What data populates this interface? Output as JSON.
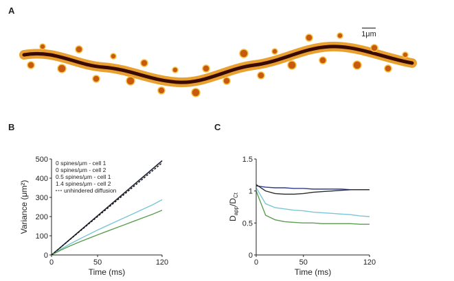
{
  "figure": {
    "panel_a": {
      "label": "A",
      "scale_bar": "1μm"
    }
  },
  "chart_data": [
    {
      "type": "line",
      "panel": "B",
      "xlabel": "Time (ms)",
      "ylabel": "Variance (μm²)",
      "x": [
        0,
        10,
        20,
        30,
        40,
        50,
        60,
        70,
        80,
        90,
        100,
        110,
        120
      ],
      "xlim": [
        0,
        120
      ],
      "xticks": [
        0,
        50,
        120
      ],
      "ylim": [
        0,
        500
      ],
      "yticks": [
        0,
        100,
        200,
        300,
        400,
        500
      ],
      "legend": "upper left",
      "series": [
        {
          "name": "0 spines/μm - cell 1",
          "color": "#2e3c8c",
          "style": "solid",
          "values": [
            0,
            41,
            82,
            123,
            164,
            205,
            246,
            287,
            328,
            369,
            410,
            451,
            492
          ]
        },
        {
          "name": "0 spines/μm - cell 2",
          "color": "#2a2a2a",
          "style": "solid",
          "values": [
            0,
            40,
            81,
            122,
            163,
            204,
            245,
            286,
            327,
            368,
            408,
            449,
            490
          ]
        },
        {
          "name": "0.5 spines/μm - cell 1",
          "color": "#79c6d6",
          "style": "solid",
          "values": [
            0,
            30,
            57,
            82,
            106,
            130,
            152,
            174,
            196,
            218,
            240,
            262,
            288
          ]
        },
        {
          "name": "1.4 spines/μm - cell 2",
          "color": "#5a9e4e",
          "style": "solid",
          "values": [
            0,
            25,
            47,
            67,
            86,
            105,
            123,
            141,
            159,
            177,
            195,
            213,
            233
          ]
        },
        {
          "name": "unhindered diffusion",
          "color": "#111111",
          "style": "dashed",
          "values": [
            0,
            40,
            80,
            120,
            160,
            200,
            240,
            280,
            320,
            360,
            400,
            440,
            480
          ]
        }
      ]
    },
    {
      "type": "line",
      "panel": "C",
      "xlabel": "Time (ms)",
      "ylabel_parts": [
        "D",
        "app",
        "/D",
        "Ct"
      ],
      "x": [
        0,
        10,
        20,
        30,
        40,
        50,
        60,
        70,
        80,
        90,
        100,
        110,
        120
      ],
      "xlim": [
        0,
        120
      ],
      "xticks": [
        0,
        50,
        120
      ],
      "ylim": [
        0,
        1.5
      ],
      "yticks": [
        0,
        0.5,
        1,
        1.5
      ],
      "series": [
        {
          "color": "#2e3c8c",
          "style": "solid",
          "values": [
            1.08,
            1.06,
            1.05,
            1.05,
            1.04,
            1.04,
            1.03,
            1.03,
            1.03,
            1.03,
            1.02,
            1.02,
            1.02
          ]
        },
        {
          "color": "#2a2a2a",
          "style": "solid",
          "values": [
            1.1,
            1.0,
            0.96,
            0.95,
            0.95,
            0.96,
            0.98,
            0.99,
            1.0,
            1.01,
            1.02,
            1.02,
            1.02
          ]
        },
        {
          "color": "#79c6d6",
          "style": "solid",
          "values": [
            1.05,
            0.8,
            0.74,
            0.72,
            0.7,
            0.69,
            0.67,
            0.66,
            0.65,
            0.64,
            0.63,
            0.61,
            0.6
          ]
        },
        {
          "color": "#5a9e4e",
          "style": "solid",
          "values": [
            1.0,
            0.62,
            0.55,
            0.52,
            0.51,
            0.5,
            0.5,
            0.49,
            0.49,
            0.49,
            0.49,
            0.48,
            0.48
          ]
        }
      ]
    }
  ]
}
